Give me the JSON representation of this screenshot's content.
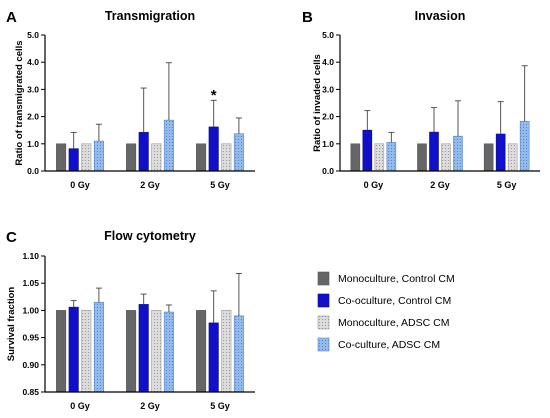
{
  "chart_data": [
    {
      "type": "bar",
      "letter": "A",
      "title": "Transmigration",
      "ylabel": "Ratio of transmigrated cells",
      "categories": [
        "0 Gy",
        "2 Gy",
        "5 Gy"
      ],
      "ylim": [
        0,
        5
      ],
      "yticks": [
        "0.0",
        "1.0",
        "2.0",
        "3.0",
        "4.0",
        "5.0"
      ],
      "series": [
        {
          "name": "Monoculture, Control CM",
          "values": [
            1.0,
            1.0,
            1.0
          ],
          "err_upper": [
            null,
            null,
            null
          ]
        },
        {
          "name": "Co-oculture, Control CM",
          "values": [
            0.82,
            1.42,
            1.62
          ],
          "err_upper": [
            1.42,
            3.05,
            2.6
          ]
        },
        {
          "name": "Monoculture, ADSC CM",
          "values": [
            1.0,
            1.0,
            1.0
          ],
          "err_upper": [
            null,
            null,
            null
          ]
        },
        {
          "name": "Co-culture, ADSC CM",
          "values": [
            1.1,
            1.87,
            1.37
          ],
          "err_upper": [
            1.72,
            3.98,
            1.95
          ]
        }
      ],
      "annotations": [
        {
          "text": "*",
          "category": "5 Gy",
          "series": 1,
          "y": 2.9
        }
      ]
    },
    {
      "type": "bar",
      "letter": "B",
      "title": "Invasion",
      "ylabel": "Ratio of invaded cells",
      "categories": [
        "0 Gy",
        "2 Gy",
        "5 Gy"
      ],
      "ylim": [
        0,
        5
      ],
      "yticks": [
        "0.0",
        "1.0",
        "2.0",
        "3.0",
        "4.0",
        "5.0"
      ],
      "series": [
        {
          "name": "Monoculture, Control CM",
          "values": [
            1.0,
            1.0,
            1.0
          ],
          "err_upper": [
            null,
            null,
            null
          ]
        },
        {
          "name": "Co-oculture, Control CM",
          "values": [
            1.5,
            1.43,
            1.36
          ],
          "err_upper": [
            2.22,
            2.33,
            2.55
          ]
        },
        {
          "name": "Monoculture, ADSC CM",
          "values": [
            1.0,
            1.0,
            1.0
          ],
          "err_upper": [
            null,
            null,
            null
          ]
        },
        {
          "name": "Co-culture, ADSC CM",
          "values": [
            1.05,
            1.28,
            1.83
          ],
          "err_upper": [
            1.42,
            2.58,
            3.87
          ]
        }
      ],
      "annotations": []
    },
    {
      "type": "bar",
      "letter": "C",
      "title": "Flow cytometry",
      "ylabel": "Survival fraction",
      "categories": [
        "0 Gy",
        "2 Gy",
        "5 Gy"
      ],
      "ylim": [
        0.85,
        1.1
      ],
      "yticks": [
        "0.85",
        "0.90",
        "0.95",
        "1.00",
        "1.05",
        "1.10"
      ],
      "series": [
        {
          "name": "Monoculture, Control CM",
          "values": [
            1.0,
            1.0,
            1.0
          ],
          "err_upper": [
            null,
            null,
            null
          ]
        },
        {
          "name": "Co-oculture, Control CM",
          "values": [
            1.006,
            1.011,
            0.977
          ],
          "err_upper": [
            1.018,
            1.03,
            1.036
          ]
        },
        {
          "name": "Monoculture, ADSC CM",
          "values": [
            1.0,
            1.0,
            1.0
          ],
          "err_upper": [
            null,
            null,
            null
          ]
        },
        {
          "name": "Co-culture, ADSC CM",
          "values": [
            1.015,
            0.997,
            0.99
          ],
          "err_upper": [
            1.041,
            1.01,
            1.068
          ]
        }
      ],
      "annotations": []
    }
  ],
  "legend": {
    "placement": "bottom-right",
    "items": [
      {
        "label": "Monoculture, Control CM",
        "color": "#666666",
        "pattern": "solid"
      },
      {
        "label": "Co-oculture, Control CM",
        "color": "#1010c8",
        "pattern": "solid"
      },
      {
        "label": "Monoculture, ADSC CM",
        "color": "#d9d9d9",
        "pattern": "dots"
      },
      {
        "label": "Co-culture, ADSC CM",
        "color": "#8fb8ea",
        "pattern": "dots"
      }
    ]
  }
}
